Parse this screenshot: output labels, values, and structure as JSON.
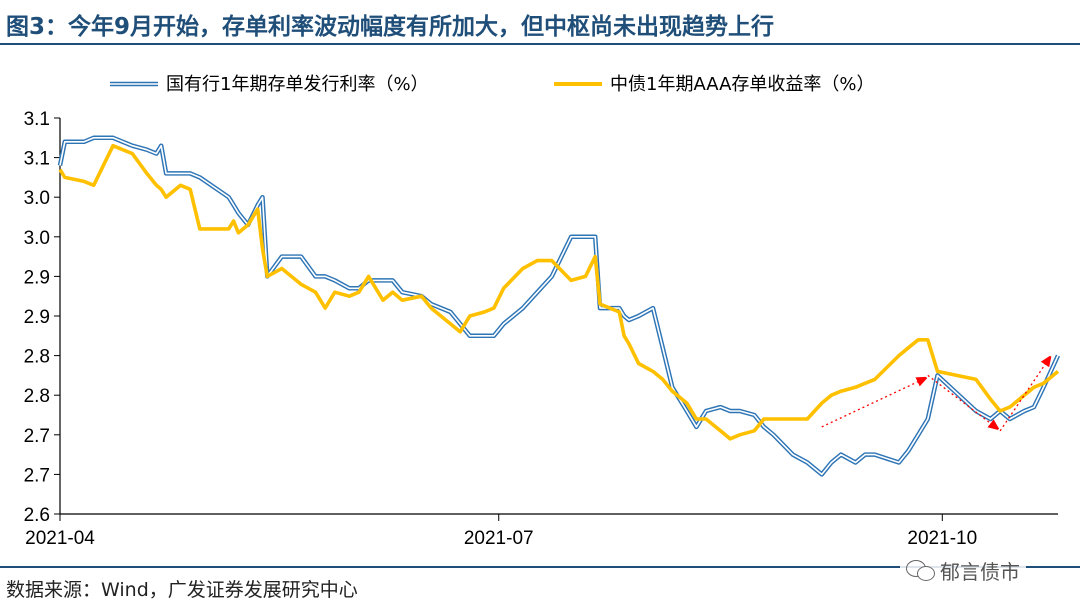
{
  "title": "图3：今年9月开始，存单利率波动幅度有所加大，但中枢尚未出现趋势上行",
  "source": "数据来源：Wind，广发证券发展研究中心",
  "watermark": "郁言债市",
  "chart_data": {
    "type": "line",
    "xlabel": "",
    "ylabel": "",
    "x_tick_labels": [
      "2021-04",
      "2021-07",
      "2021-10"
    ],
    "x_tick_dates": [
      "2021-04-01",
      "2021-07-01",
      "2021-10-01"
    ],
    "x_range": [
      "2021-04-01",
      "2021-10-25"
    ],
    "y_tick_labels": [
      "3.1",
      "3.1",
      "3.0",
      "3.0",
      "2.9",
      "2.9",
      "2.8",
      "2.8",
      "2.7",
      "2.7",
      "2.6"
    ],
    "ylim": [
      2.6,
      3.1
    ],
    "grid": false,
    "legend_position": "top",
    "series": [
      {
        "name": "国有行1年期存单发行利率（%）",
        "color": "#2e75b6",
        "style": "double-line",
        "points": [
          [
            "2021-04-01",
            3.04
          ],
          [
            "2021-04-02",
            3.07
          ],
          [
            "2021-04-06",
            3.07
          ],
          [
            "2021-04-08",
            3.075
          ],
          [
            "2021-04-12",
            3.075
          ],
          [
            "2021-04-14",
            3.07
          ],
          [
            "2021-04-16",
            3.065
          ],
          [
            "2021-04-19",
            3.06
          ],
          [
            "2021-04-21",
            3.055
          ],
          [
            "2021-04-22",
            3.065
          ],
          [
            "2021-04-23",
            3.03
          ],
          [
            "2021-04-26",
            3.03
          ],
          [
            "2021-04-28",
            3.03
          ],
          [
            "2021-04-30",
            3.025
          ],
          [
            "2021-05-06",
            3.0
          ],
          [
            "2021-05-07",
            2.99
          ],
          [
            "2021-05-08",
            2.98
          ],
          [
            "2021-05-10",
            2.965
          ],
          [
            "2021-05-12",
            2.99
          ],
          [
            "2021-05-13",
            3.0
          ],
          [
            "2021-05-14",
            2.9
          ],
          [
            "2021-05-17",
            2.925
          ],
          [
            "2021-05-19",
            2.925
          ],
          [
            "2021-05-21",
            2.925
          ],
          [
            "2021-05-24",
            2.9
          ],
          [
            "2021-05-26",
            2.9
          ],
          [
            "2021-05-28",
            2.895
          ],
          [
            "2021-05-31",
            2.885
          ],
          [
            "2021-06-02",
            2.885
          ],
          [
            "2021-06-04",
            2.895
          ],
          [
            "2021-06-07",
            2.895
          ],
          [
            "2021-06-09",
            2.895
          ],
          [
            "2021-06-11",
            2.88
          ],
          [
            "2021-06-15",
            2.875
          ],
          [
            "2021-06-17",
            2.865
          ],
          [
            "2021-06-21",
            2.855
          ],
          [
            "2021-06-23",
            2.84
          ],
          [
            "2021-06-25",
            2.825
          ],
          [
            "2021-06-28",
            2.825
          ],
          [
            "2021-06-30",
            2.825
          ],
          [
            "2021-07-02",
            2.84
          ],
          [
            "2021-07-06",
            2.86
          ],
          [
            "2021-07-09",
            2.88
          ],
          [
            "2021-07-12",
            2.9
          ],
          [
            "2021-07-16",
            2.95
          ],
          [
            "2021-07-19",
            2.95
          ],
          [
            "2021-07-21",
            2.95
          ],
          [
            "2021-07-22",
            2.86
          ],
          [
            "2021-07-26",
            2.86
          ],
          [
            "2021-07-27",
            2.85
          ],
          [
            "2021-07-28",
            2.845
          ],
          [
            "2021-07-30",
            2.85
          ],
          [
            "2021-08-02",
            2.86
          ],
          [
            "2021-08-04",
            2.81
          ],
          [
            "2021-08-06",
            2.76
          ],
          [
            "2021-08-09",
            2.73
          ],
          [
            "2021-08-11",
            2.71
          ],
          [
            "2021-08-13",
            2.73
          ],
          [
            "2021-08-16",
            2.735
          ],
          [
            "2021-08-18",
            2.73
          ],
          [
            "2021-08-20",
            2.73
          ],
          [
            "2021-08-23",
            2.725
          ],
          [
            "2021-08-25",
            2.71
          ],
          [
            "2021-08-27",
            2.7
          ],
          [
            "2021-08-31",
            2.675
          ],
          [
            "2021-09-03",
            2.665
          ],
          [
            "2021-09-06",
            2.65
          ],
          [
            "2021-09-08",
            2.665
          ],
          [
            "2021-09-10",
            2.675
          ],
          [
            "2021-09-13",
            2.665
          ],
          [
            "2021-09-15",
            2.675
          ],
          [
            "2021-09-17",
            2.675
          ],
          [
            "2021-09-22",
            2.665
          ],
          [
            "2021-09-24",
            2.68
          ],
          [
            "2021-09-26",
            2.7
          ],
          [
            "2021-09-28",
            2.72
          ],
          [
            "2021-09-30",
            2.775
          ],
          [
            "2021-10-08",
            2.73
          ],
          [
            "2021-10-11",
            2.72
          ],
          [
            "2021-10-13",
            2.73
          ],
          [
            "2021-10-15",
            2.72
          ],
          [
            "2021-10-18",
            2.73
          ],
          [
            "2021-10-20",
            2.735
          ],
          [
            "2021-10-22",
            2.76
          ],
          [
            "2021-10-25",
            2.8
          ]
        ]
      },
      {
        "name": "中债1年期AAA存单收益率（%）",
        "color": "#ffc000",
        "style": "solid",
        "points": [
          [
            "2021-04-01",
            3.035
          ],
          [
            "2021-04-02",
            3.025
          ],
          [
            "2021-04-06",
            3.02
          ],
          [
            "2021-04-08",
            3.015
          ],
          [
            "2021-04-12",
            3.065
          ],
          [
            "2021-04-14",
            3.06
          ],
          [
            "2021-04-16",
            3.055
          ],
          [
            "2021-04-19",
            3.03
          ],
          [
            "2021-04-21",
            3.015
          ],
          [
            "2021-04-22",
            3.01
          ],
          [
            "2021-04-23",
            3.0
          ],
          [
            "2021-04-26",
            3.015
          ],
          [
            "2021-04-28",
            3.01
          ],
          [
            "2021-04-30",
            2.96
          ],
          [
            "2021-05-06",
            2.96
          ],
          [
            "2021-05-07",
            2.97
          ],
          [
            "2021-05-08",
            2.955
          ],
          [
            "2021-05-10",
            2.965
          ],
          [
            "2021-05-12",
            2.985
          ],
          [
            "2021-05-13",
            2.935
          ],
          [
            "2021-05-14",
            2.9
          ],
          [
            "2021-05-17",
            2.91
          ],
          [
            "2021-05-19",
            2.9
          ],
          [
            "2021-05-21",
            2.89
          ],
          [
            "2021-05-24",
            2.88
          ],
          [
            "2021-05-26",
            2.86
          ],
          [
            "2021-05-28",
            2.88
          ],
          [
            "2021-05-31",
            2.875
          ],
          [
            "2021-06-02",
            2.88
          ],
          [
            "2021-06-04",
            2.9
          ],
          [
            "2021-06-07",
            2.87
          ],
          [
            "2021-06-09",
            2.88
          ],
          [
            "2021-06-11",
            2.87
          ],
          [
            "2021-06-15",
            2.875
          ],
          [
            "2021-06-17",
            2.86
          ],
          [
            "2021-06-21",
            2.84
          ],
          [
            "2021-06-23",
            2.83
          ],
          [
            "2021-06-25",
            2.85
          ],
          [
            "2021-06-28",
            2.855
          ],
          [
            "2021-06-30",
            2.86
          ],
          [
            "2021-07-02",
            2.885
          ],
          [
            "2021-07-06",
            2.91
          ],
          [
            "2021-07-09",
            2.92
          ],
          [
            "2021-07-12",
            2.92
          ],
          [
            "2021-07-16",
            2.895
          ],
          [
            "2021-07-19",
            2.9
          ],
          [
            "2021-07-21",
            2.925
          ],
          [
            "2021-07-22",
            2.865
          ],
          [
            "2021-07-26",
            2.855
          ],
          [
            "2021-07-27",
            2.825
          ],
          [
            "2021-07-28",
            2.815
          ],
          [
            "2021-07-30",
            2.79
          ],
          [
            "2021-08-02",
            2.78
          ],
          [
            "2021-08-04",
            2.77
          ],
          [
            "2021-08-06",
            2.755
          ],
          [
            "2021-08-09",
            2.74
          ],
          [
            "2021-08-11",
            2.72
          ],
          [
            "2021-08-13",
            2.72
          ],
          [
            "2021-08-16",
            2.705
          ],
          [
            "2021-08-18",
            2.695
          ],
          [
            "2021-08-20",
            2.7
          ],
          [
            "2021-08-23",
            2.705
          ],
          [
            "2021-08-25",
            2.72
          ],
          [
            "2021-08-27",
            2.72
          ],
          [
            "2021-08-31",
            2.72
          ],
          [
            "2021-09-03",
            2.72
          ],
          [
            "2021-09-06",
            2.74
          ],
          [
            "2021-09-08",
            2.75
          ],
          [
            "2021-09-10",
            2.755
          ],
          [
            "2021-09-13",
            2.76
          ],
          [
            "2021-09-15",
            2.765
          ],
          [
            "2021-09-17",
            2.77
          ],
          [
            "2021-09-22",
            2.8
          ],
          [
            "2021-09-24",
            2.81
          ],
          [
            "2021-09-26",
            2.82
          ],
          [
            "2021-09-28",
            2.82
          ],
          [
            "2021-09-30",
            2.78
          ],
          [
            "2021-10-08",
            2.77
          ],
          [
            "2021-10-11",
            2.745
          ],
          [
            "2021-10-13",
            2.73
          ],
          [
            "2021-10-15",
            2.735
          ],
          [
            "2021-10-18",
            2.75
          ],
          [
            "2021-10-20",
            2.76
          ],
          [
            "2021-10-22",
            2.765
          ],
          [
            "2021-10-25",
            2.78
          ]
        ]
      }
    ],
    "annotations": [
      {
        "type": "arrow",
        "style": "dotted",
        "color": "#ff0000",
        "from": [
          "2021-09-06",
          2.71
        ],
        "to": [
          "2021-09-27",
          2.77
        ]
      },
      {
        "type": "arrow",
        "style": "dotted",
        "color": "#ff0000",
        "from": [
          "2021-09-28",
          2.775
        ],
        "to": [
          "2021-10-12",
          2.71
        ]
      },
      {
        "type": "arrow",
        "style": "dotted",
        "color": "#ff0000",
        "from": [
          "2021-10-13",
          2.705
        ],
        "to": [
          "2021-10-23",
          2.795
        ]
      }
    ]
  }
}
